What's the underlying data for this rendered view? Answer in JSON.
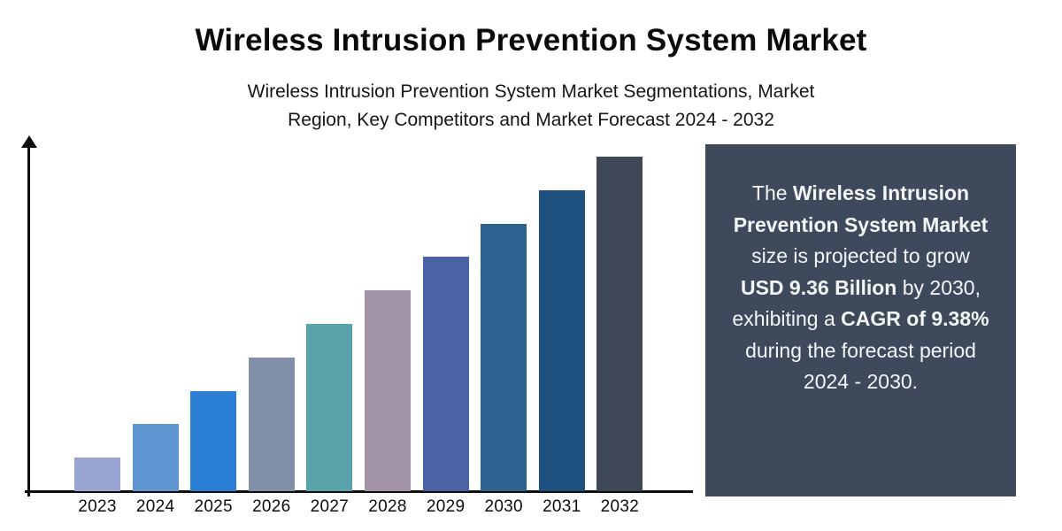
{
  "header": {
    "title": "Wireless Intrusion Prevention System Market",
    "subtitle_line1": "Wireless Intrusion Prevention System Market Segmentations, Market",
    "subtitle_line2": "Region, Key Competitors and Market Forecast 2024 - 2032"
  },
  "chart_data": {
    "type": "bar",
    "title": "Wireless Intrusion Prevention System Market",
    "categories": [
      "2023",
      "2024",
      "2025",
      "2026",
      "2027",
      "2028",
      "2029",
      "2030",
      "2031",
      "2032"
    ],
    "values": [
      1,
      2,
      3,
      4,
      5,
      6,
      7,
      8,
      9,
      10
    ],
    "unit": "relative bar height (y-axis shown without scale labels)",
    "bar_colors": [
      "#98a5d3",
      "#5f96d2",
      "#2b7fd4",
      "#828fa8",
      "#5ba3ab",
      "#a294a6",
      "#4a62a6",
      "#2c6190",
      "#1e5180",
      "#3e4857"
    ],
    "xlabel": "",
    "ylabel": "",
    "ylim": [
      0,
      10.5
    ],
    "grid": false,
    "legend": false,
    "axis_color": "#0e0e0e"
  },
  "panel": {
    "bg": "#3e4a5c",
    "text_color": "#f4f5f7",
    "segments": [
      {
        "text": "The ",
        "bold": false
      },
      {
        "text": "Wireless Intrusion Prevention System Market",
        "bold": true
      },
      {
        "text": " size is projected to grow ",
        "bold": false
      },
      {
        "text": "USD 9.36 Billion",
        "bold": true
      },
      {
        "text": " by 2030, exhibiting a ",
        "bold": false
      },
      {
        "text": "CAGR of 9.38%",
        "bold": true
      },
      {
        "text": " during the forecast period 2024 - 2030.",
        "bold": false
      }
    ]
  }
}
